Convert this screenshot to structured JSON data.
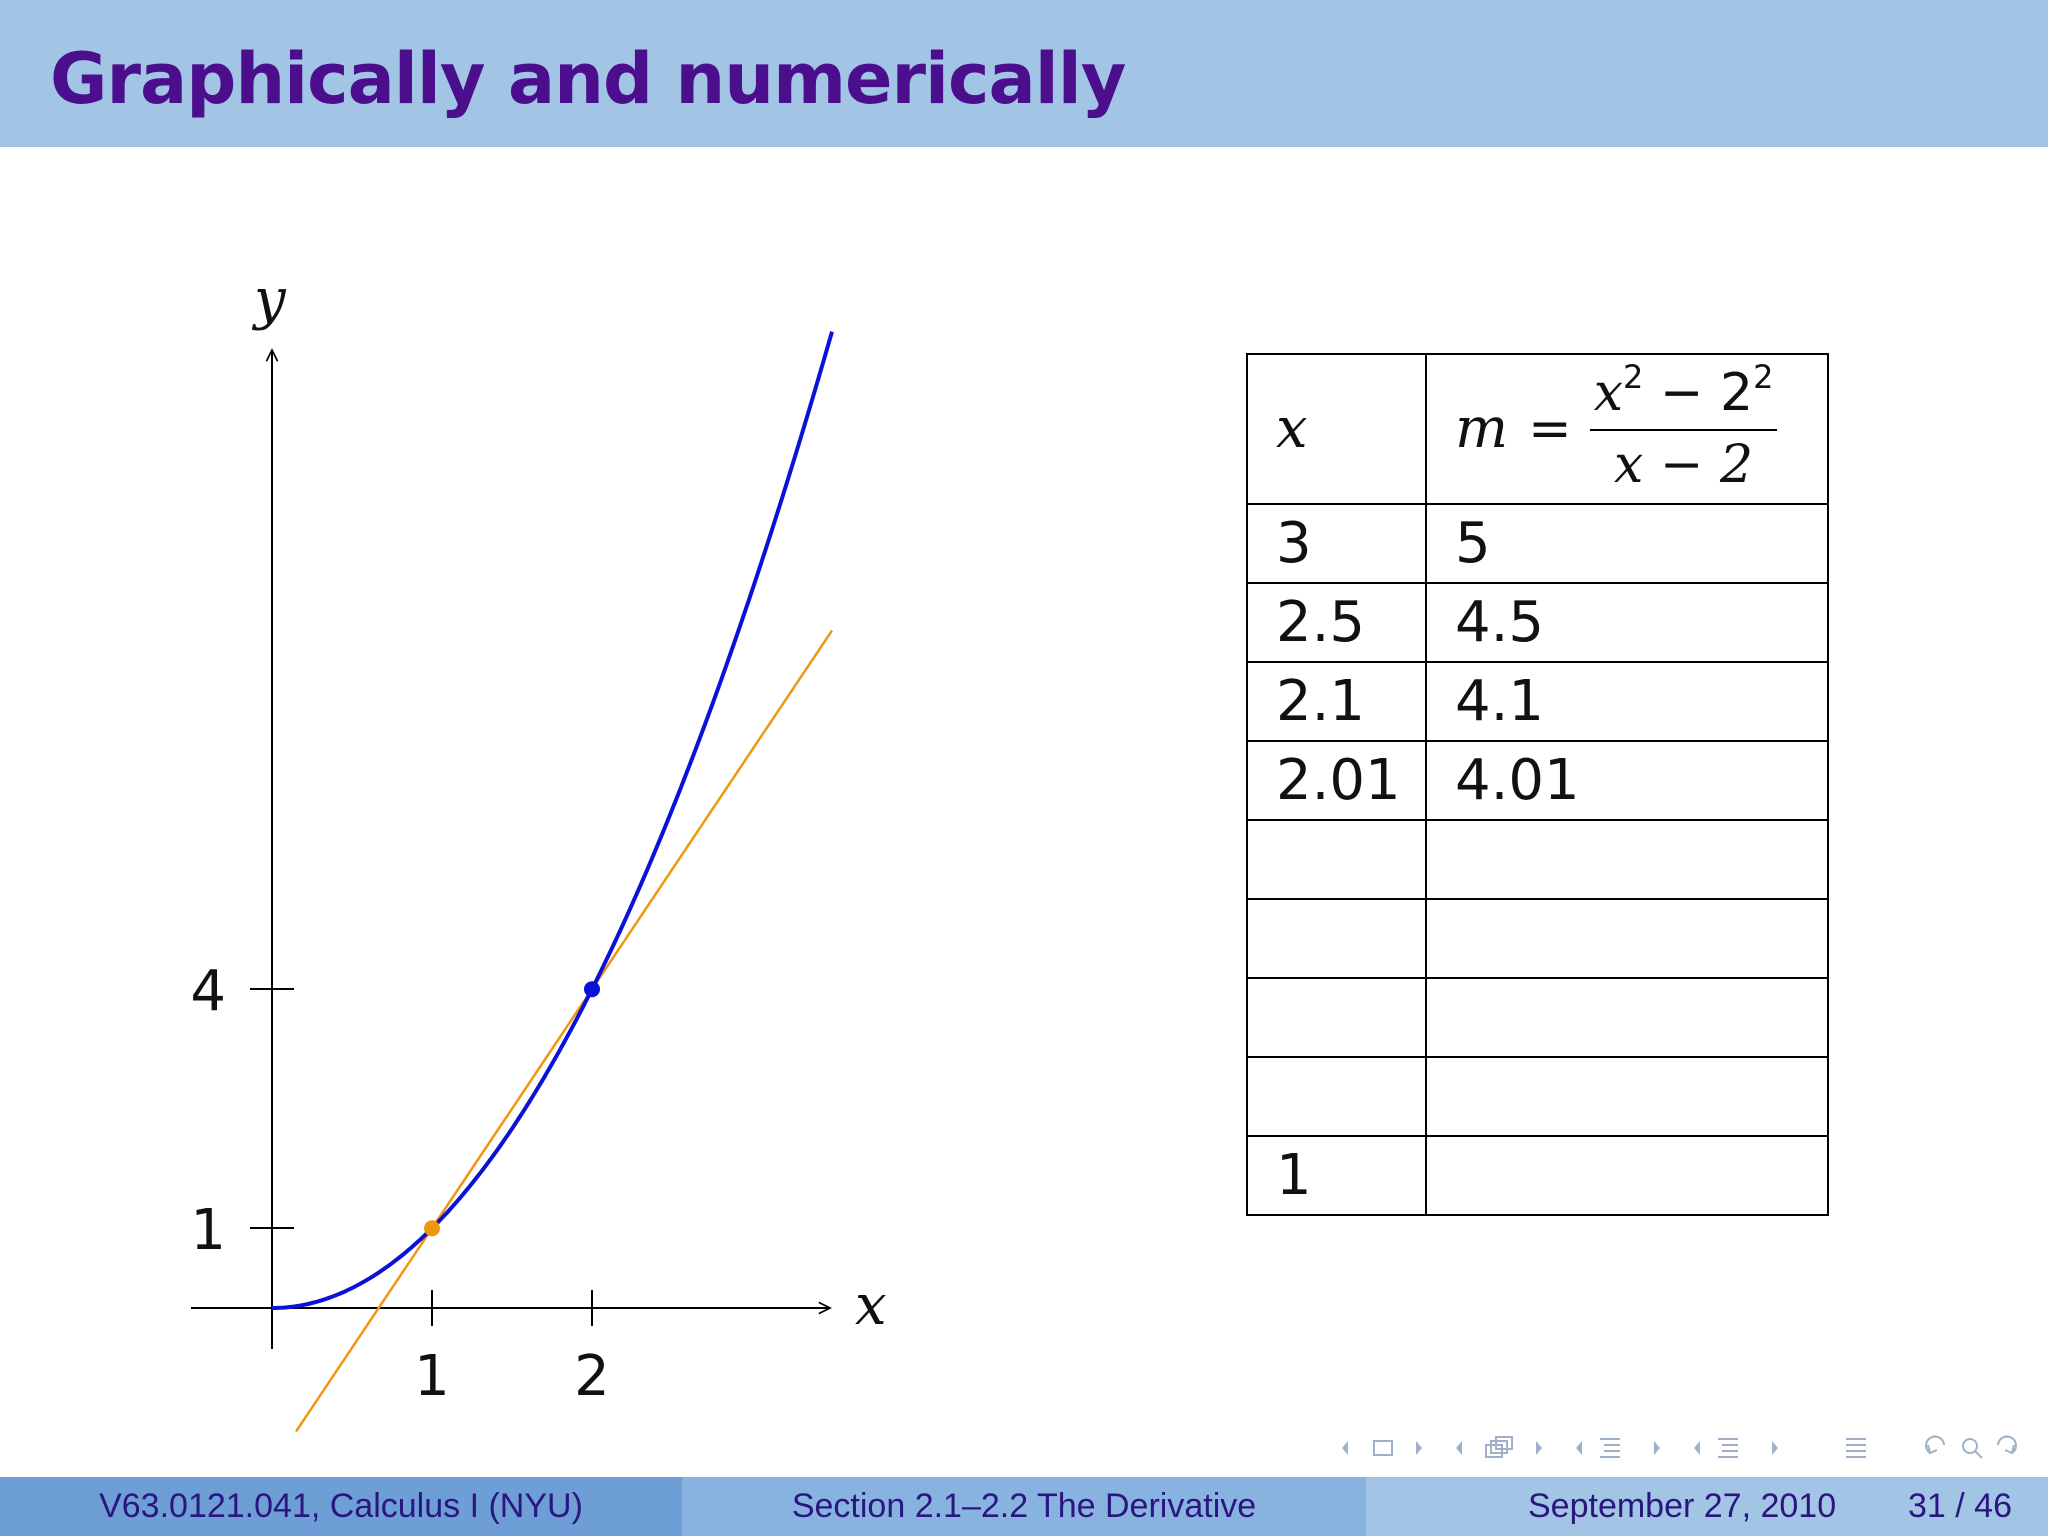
{
  "slide": {
    "title": "Graphically and numerically"
  },
  "graph": {
    "y_label": "y",
    "x_label": "x",
    "x_ticks": [
      "1",
      "2"
    ],
    "y_ticks": [
      "1",
      "4"
    ],
    "colors": {
      "curve": "#0a12d8",
      "secant": "#f0960f",
      "axis": "#000000"
    }
  },
  "chart_data": {
    "type": "line",
    "xlabel": "x",
    "ylabel": "y",
    "xlim": [
      -0.5,
      3.5
    ],
    "ylim": [
      -1.5,
      12
    ],
    "x_ticks": [
      1,
      2
    ],
    "y_ticks": [
      1,
      4
    ],
    "series": [
      {
        "kind": "curve",
        "function": "x^2",
        "x_range": [
          0,
          3.5
        ],
        "color": "#0a12d8"
      },
      {
        "kind": "line",
        "slope": 3,
        "through": [
          1,
          1
        ],
        "x_range": [
          0.15,
          3.5
        ],
        "color": "#f0960f"
      }
    ],
    "points": [
      {
        "x": 1,
        "y": 1,
        "color": "#f0960f"
      },
      {
        "x": 2,
        "y": 4,
        "color": "#0a12d8"
      }
    ]
  },
  "table": {
    "header": {
      "x": "x",
      "m": "m",
      "eq": "=",
      "num_base": "x",
      "num_exp": "2",
      "minus": "−",
      "num_base2": "2",
      "num_exp2": "2",
      "den": "x − 2"
    },
    "rows": [
      {
        "x": "3",
        "m": "5"
      },
      {
        "x": "2.5",
        "m": "4.5"
      },
      {
        "x": "2.1",
        "m": "4.1"
      },
      {
        "x": "2.01",
        "m": "4.01"
      },
      {
        "x": "",
        "m": ""
      },
      {
        "x": "",
        "m": ""
      },
      {
        "x": "",
        "m": ""
      },
      {
        "x": "",
        "m": ""
      },
      {
        "x": "1",
        "m": ""
      }
    ]
  },
  "navigation": {
    "icons": [
      "arrow-left-icon",
      "frame-icon",
      "arrow-right-icon",
      "arrow-left-icon",
      "subsection-icon",
      "arrow-right-icon",
      "arrow-left-icon",
      "section-icon",
      "arrow-right-icon",
      "arrow-left-icon",
      "section-icon",
      "arrow-right-icon",
      "align-icon",
      "undo-icon",
      "search-icon",
      "redo-icon"
    ]
  },
  "footer": {
    "course": "V63.0121.041, Calculus I (NYU)",
    "section": "Section 2.1–2.2 The Derivative",
    "date": "September 27, 2010",
    "page": "31 / 46"
  }
}
